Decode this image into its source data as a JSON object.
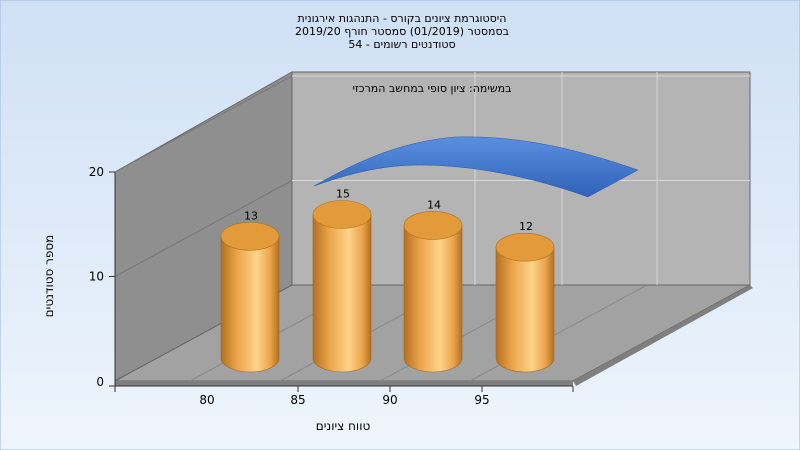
{
  "chart_data": {
    "type": "bar",
    "title": [
      "היסטוגרמת ציונים בקורס - התנהגות אירגונית",
      "בסמסטר  (01/2019)  סמסטר חורף 2019/20",
      "סטודנטים רשומים - 54"
    ],
    "annotation": "במשימה: ציון סופי במחשב המרכזי",
    "xlabel": "טווח ציונים",
    "ylabel": "מספר סטודנטים",
    "categories": [
      "80",
      "85",
      "90",
      "95"
    ],
    "values": [
      13,
      15,
      14,
      12
    ],
    "yticks": [
      "0",
      "10",
      "20"
    ],
    "ylim": [
      0,
      20
    ],
    "bar_style": "3d-cylinder",
    "trend_curve": true,
    "colors": {
      "bar_light": "#fdd48a",
      "bar_mid": "#eba44a",
      "bar_dark": "#b27020",
      "curve": "#3d72c8",
      "back_wall": "#b4b4b4",
      "side_wall": "#8f8f8f",
      "floor": "#a2a2a2",
      "background": "#dbe8f8"
    }
  }
}
